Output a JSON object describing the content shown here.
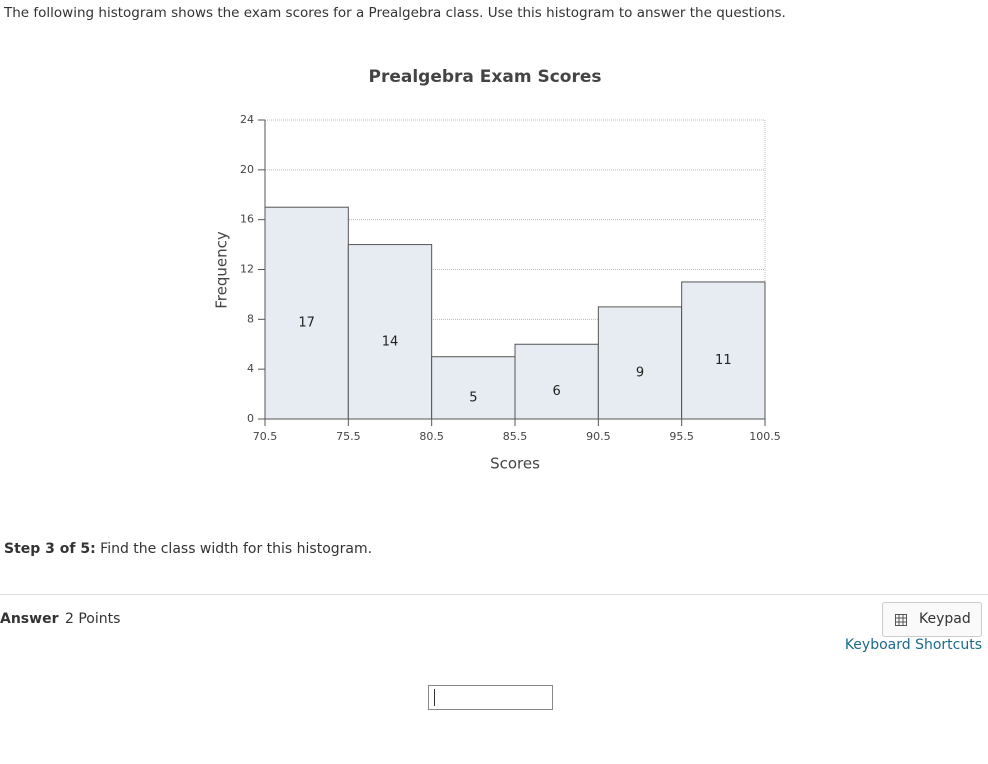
{
  "intro": "The following histogram shows the exam scores for a Prealgebra class. Use this histogram to answer the questions.",
  "chart_data": {
    "type": "histogram",
    "title": "Prealgebra Exam Scores",
    "x_label": "Scores",
    "y_label": "Frequency",
    "bins": [
      70.5,
      75.5,
      80.5,
      85.5,
      90.5,
      95.5,
      100.5
    ],
    "values": [
      17,
      14,
      5,
      6,
      9,
      11
    ],
    "color": "#e6ecf2",
    "xlim": [
      70.5,
      100.5
    ],
    "xticks": [
      70.5,
      75.5,
      80.5,
      85.5,
      90.5,
      95.5,
      100.5
    ],
    "ylim": [
      0,
      24
    ],
    "yticks": [
      0,
      4,
      8,
      12,
      16,
      20,
      24
    ],
    "grid": true
  },
  "step": {
    "label": "Step 3 of 5:",
    "text": "Find the class width for this histogram."
  },
  "answer": {
    "label": "Answer",
    "points": "2 Points"
  },
  "keypad": "Keypad",
  "shortcuts": "Keyboard Shortcuts"
}
